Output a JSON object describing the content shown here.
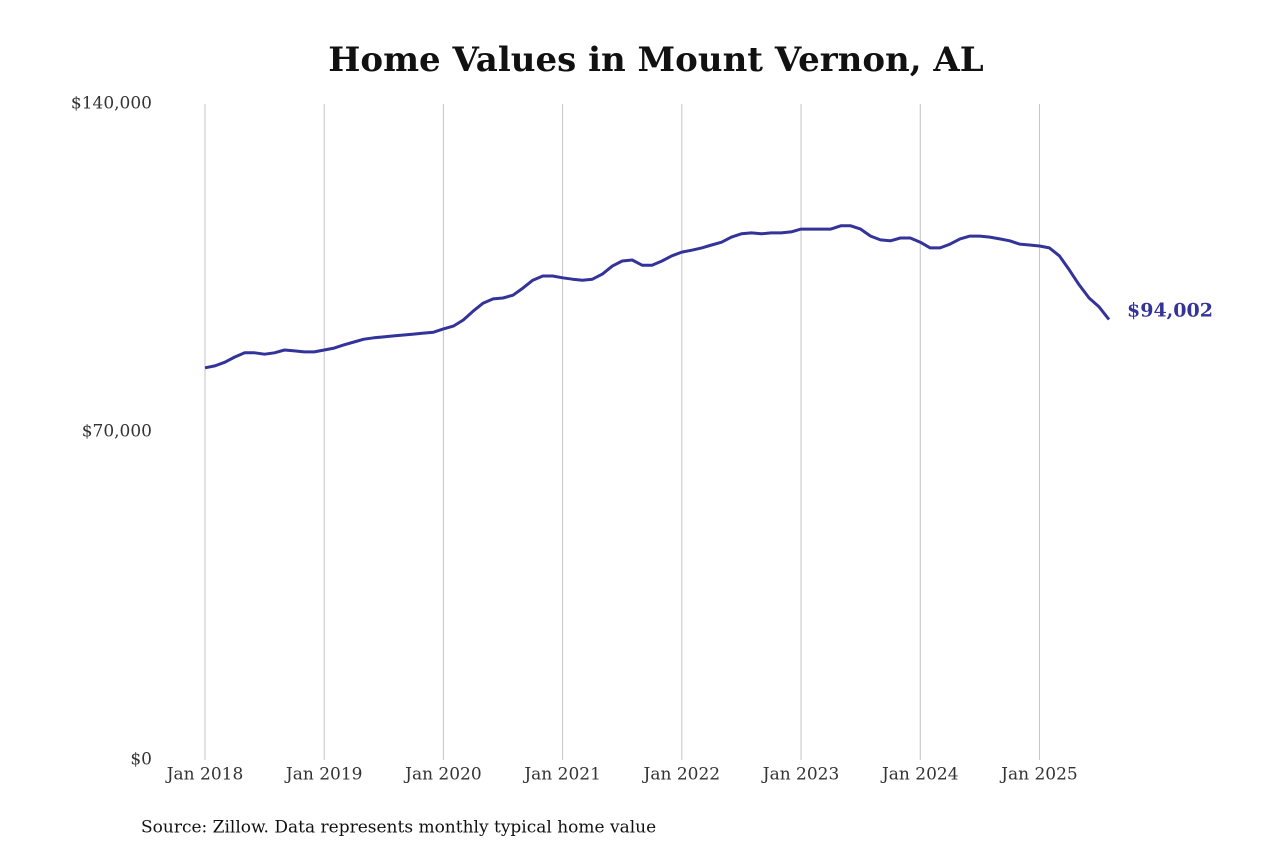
{
  "chart_data": {
    "type": "line",
    "title": "Home Values in Mount Vernon, AL",
    "source": "Source: Zillow. Data represents monthly typical home value",
    "x": [
      "2018-01",
      "2018-02",
      "2018-03",
      "2018-04",
      "2018-05",
      "2018-06",
      "2018-07",
      "2018-08",
      "2018-09",
      "2018-10",
      "2018-11",
      "2018-12",
      "2019-01",
      "2019-02",
      "2019-03",
      "2019-04",
      "2019-05",
      "2019-06",
      "2019-07",
      "2019-08",
      "2019-09",
      "2019-10",
      "2019-11",
      "2019-12",
      "2020-01",
      "2020-02",
      "2020-03",
      "2020-04",
      "2020-05",
      "2020-06",
      "2020-07",
      "2020-08",
      "2020-09",
      "2020-10",
      "2020-11",
      "2020-12",
      "2021-01",
      "2021-02",
      "2021-03",
      "2021-04",
      "2021-05",
      "2021-06",
      "2021-07",
      "2021-08",
      "2021-09",
      "2021-10",
      "2021-11",
      "2021-12",
      "2022-01",
      "2022-02",
      "2022-03",
      "2022-04",
      "2022-05",
      "2022-06",
      "2022-07",
      "2022-08",
      "2022-09",
      "2022-10",
      "2022-11",
      "2022-12",
      "2023-01",
      "2023-02",
      "2023-03",
      "2023-04",
      "2023-05",
      "2023-06",
      "2023-07",
      "2023-08",
      "2023-09",
      "2023-10",
      "2023-11",
      "2023-12",
      "2024-01",
      "2024-02",
      "2024-03",
      "2024-04",
      "2024-05",
      "2024-06",
      "2024-07",
      "2024-08",
      "2024-09",
      "2024-10",
      "2024-11",
      "2024-12",
      "2025-01",
      "2025-02",
      "2025-03",
      "2025-04",
      "2025-05",
      "2025-06",
      "2025-07",
      "2025-08"
    ],
    "values": [
      83700,
      84100,
      84900,
      86000,
      86900,
      86900,
      86600,
      86900,
      87500,
      87300,
      87100,
      87100,
      87500,
      87900,
      88600,
      89200,
      89800,
      90100,
      90300,
      90500,
      90700,
      90900,
      91100,
      91300,
      92000,
      92600,
      93900,
      95800,
      97500,
      98400,
      98600,
      99200,
      100700,
      102400,
      103300,
      103300,
      102900,
      102600,
      102400,
      102600,
      103700,
      105400,
      106500,
      106700,
      105600,
      105600,
      106500,
      107600,
      108400,
      108800,
      109300,
      109900,
      110500,
      111600,
      112300,
      112500,
      112300,
      112500,
      112500,
      112700,
      113300,
      113300,
      113300,
      113300,
      114000,
      114000,
      113300,
      111800,
      111000,
      110800,
      111400,
      111400,
      110500,
      109300,
      109300,
      110100,
      111200,
      111800,
      111800,
      111600,
      111200,
      110800,
      110100,
      109900,
      109700,
      109300,
      107600,
      104600,
      101400,
      98600,
      96700,
      94002
    ],
    "value_labels": [
      null,
      null,
      null,
      null,
      null,
      null,
      null,
      null,
      null,
      null,
      null,
      null,
      null,
      null,
      null,
      null,
      null,
      null,
      null,
      null,
      null,
      null,
      null,
      null,
      null,
      null,
      null,
      null,
      null,
      null,
      null,
      null,
      null,
      null,
      null,
      null,
      null,
      null,
      null,
      null,
      null,
      null,
      null,
      null,
      null,
      null,
      null,
      null,
      null,
      null,
      null,
      null,
      null,
      null,
      null,
      null,
      null,
      null,
      null,
      null,
      null,
      null,
      null,
      null,
      null,
      null,
      null,
      null,
      null,
      null,
      null,
      null,
      null,
      null,
      null,
      null,
      null,
      null,
      null,
      null,
      null,
      null,
      null,
      null,
      null,
      null,
      null,
      null,
      null,
      null,
      null,
      "$94,002"
    ],
    "color": "#33339a",
    "xlim": [
      "2018-01",
      "2025-08"
    ],
    "xticks": [
      {
        "value": "2018-01",
        "label": "Jan 2018"
      },
      {
        "value": "2019-01",
        "label": "Jan 2019"
      },
      {
        "value": "2020-01",
        "label": "Jan 2020"
      },
      {
        "value": "2021-01",
        "label": "Jan 2021"
      },
      {
        "value": "2022-01",
        "label": "Jan 2022"
      },
      {
        "value": "2023-01",
        "label": "Jan 2023"
      },
      {
        "value": "2024-01",
        "label": "Jan 2024"
      },
      {
        "value": "2025-01",
        "label": "Jan 2025"
      }
    ],
    "ylim": [
      0,
      140000
    ],
    "yticks": [
      {
        "value": 0,
        "label": "$0"
      },
      {
        "value": 70000,
        "label": "$70,000"
      },
      {
        "value": 140000,
        "label": "$140,000"
      }
    ],
    "grid": "x"
  }
}
